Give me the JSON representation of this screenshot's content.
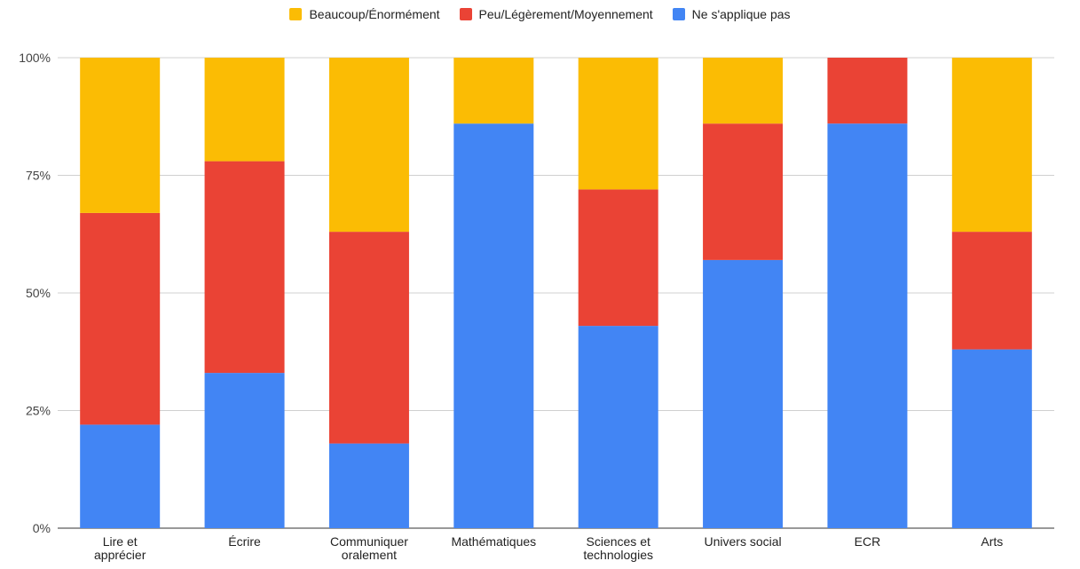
{
  "chart_data": {
    "type": "bar",
    "stacked": true,
    "percent": true,
    "categories": [
      [
        "Lire et",
        "apprécier"
      ],
      [
        "Écrire"
      ],
      [
        "Communiquer",
        "oralement"
      ],
      [
        "Mathématiques"
      ],
      [
        "Sciences et",
        "technologies"
      ],
      [
        "Univers social"
      ],
      [
        "ECR"
      ],
      [
        "Arts"
      ]
    ],
    "series": [
      {
        "name": "Ne s'applique pas",
        "color": "#4285F4",
        "values": [
          22,
          33,
          18,
          86,
          43,
          57,
          86,
          38
        ]
      },
      {
        "name": "Peu/Légèrement/Moyennement",
        "color": "#EA4335",
        "values": [
          45,
          45,
          45,
          0,
          29,
          29,
          14,
          25
        ]
      },
      {
        "name": "Beaucoup/Énormément",
        "color": "#FBBC04",
        "values": [
          33,
          22,
          37,
          14,
          28,
          14,
          0,
          37
        ]
      }
    ],
    "legend_order": [
      2,
      1,
      0
    ],
    "ylim": [
      0,
      100
    ],
    "yticks": [
      "0%",
      "25%",
      "50%",
      "75%",
      "100%"
    ],
    "grid": true,
    "legend_position": "top"
  }
}
